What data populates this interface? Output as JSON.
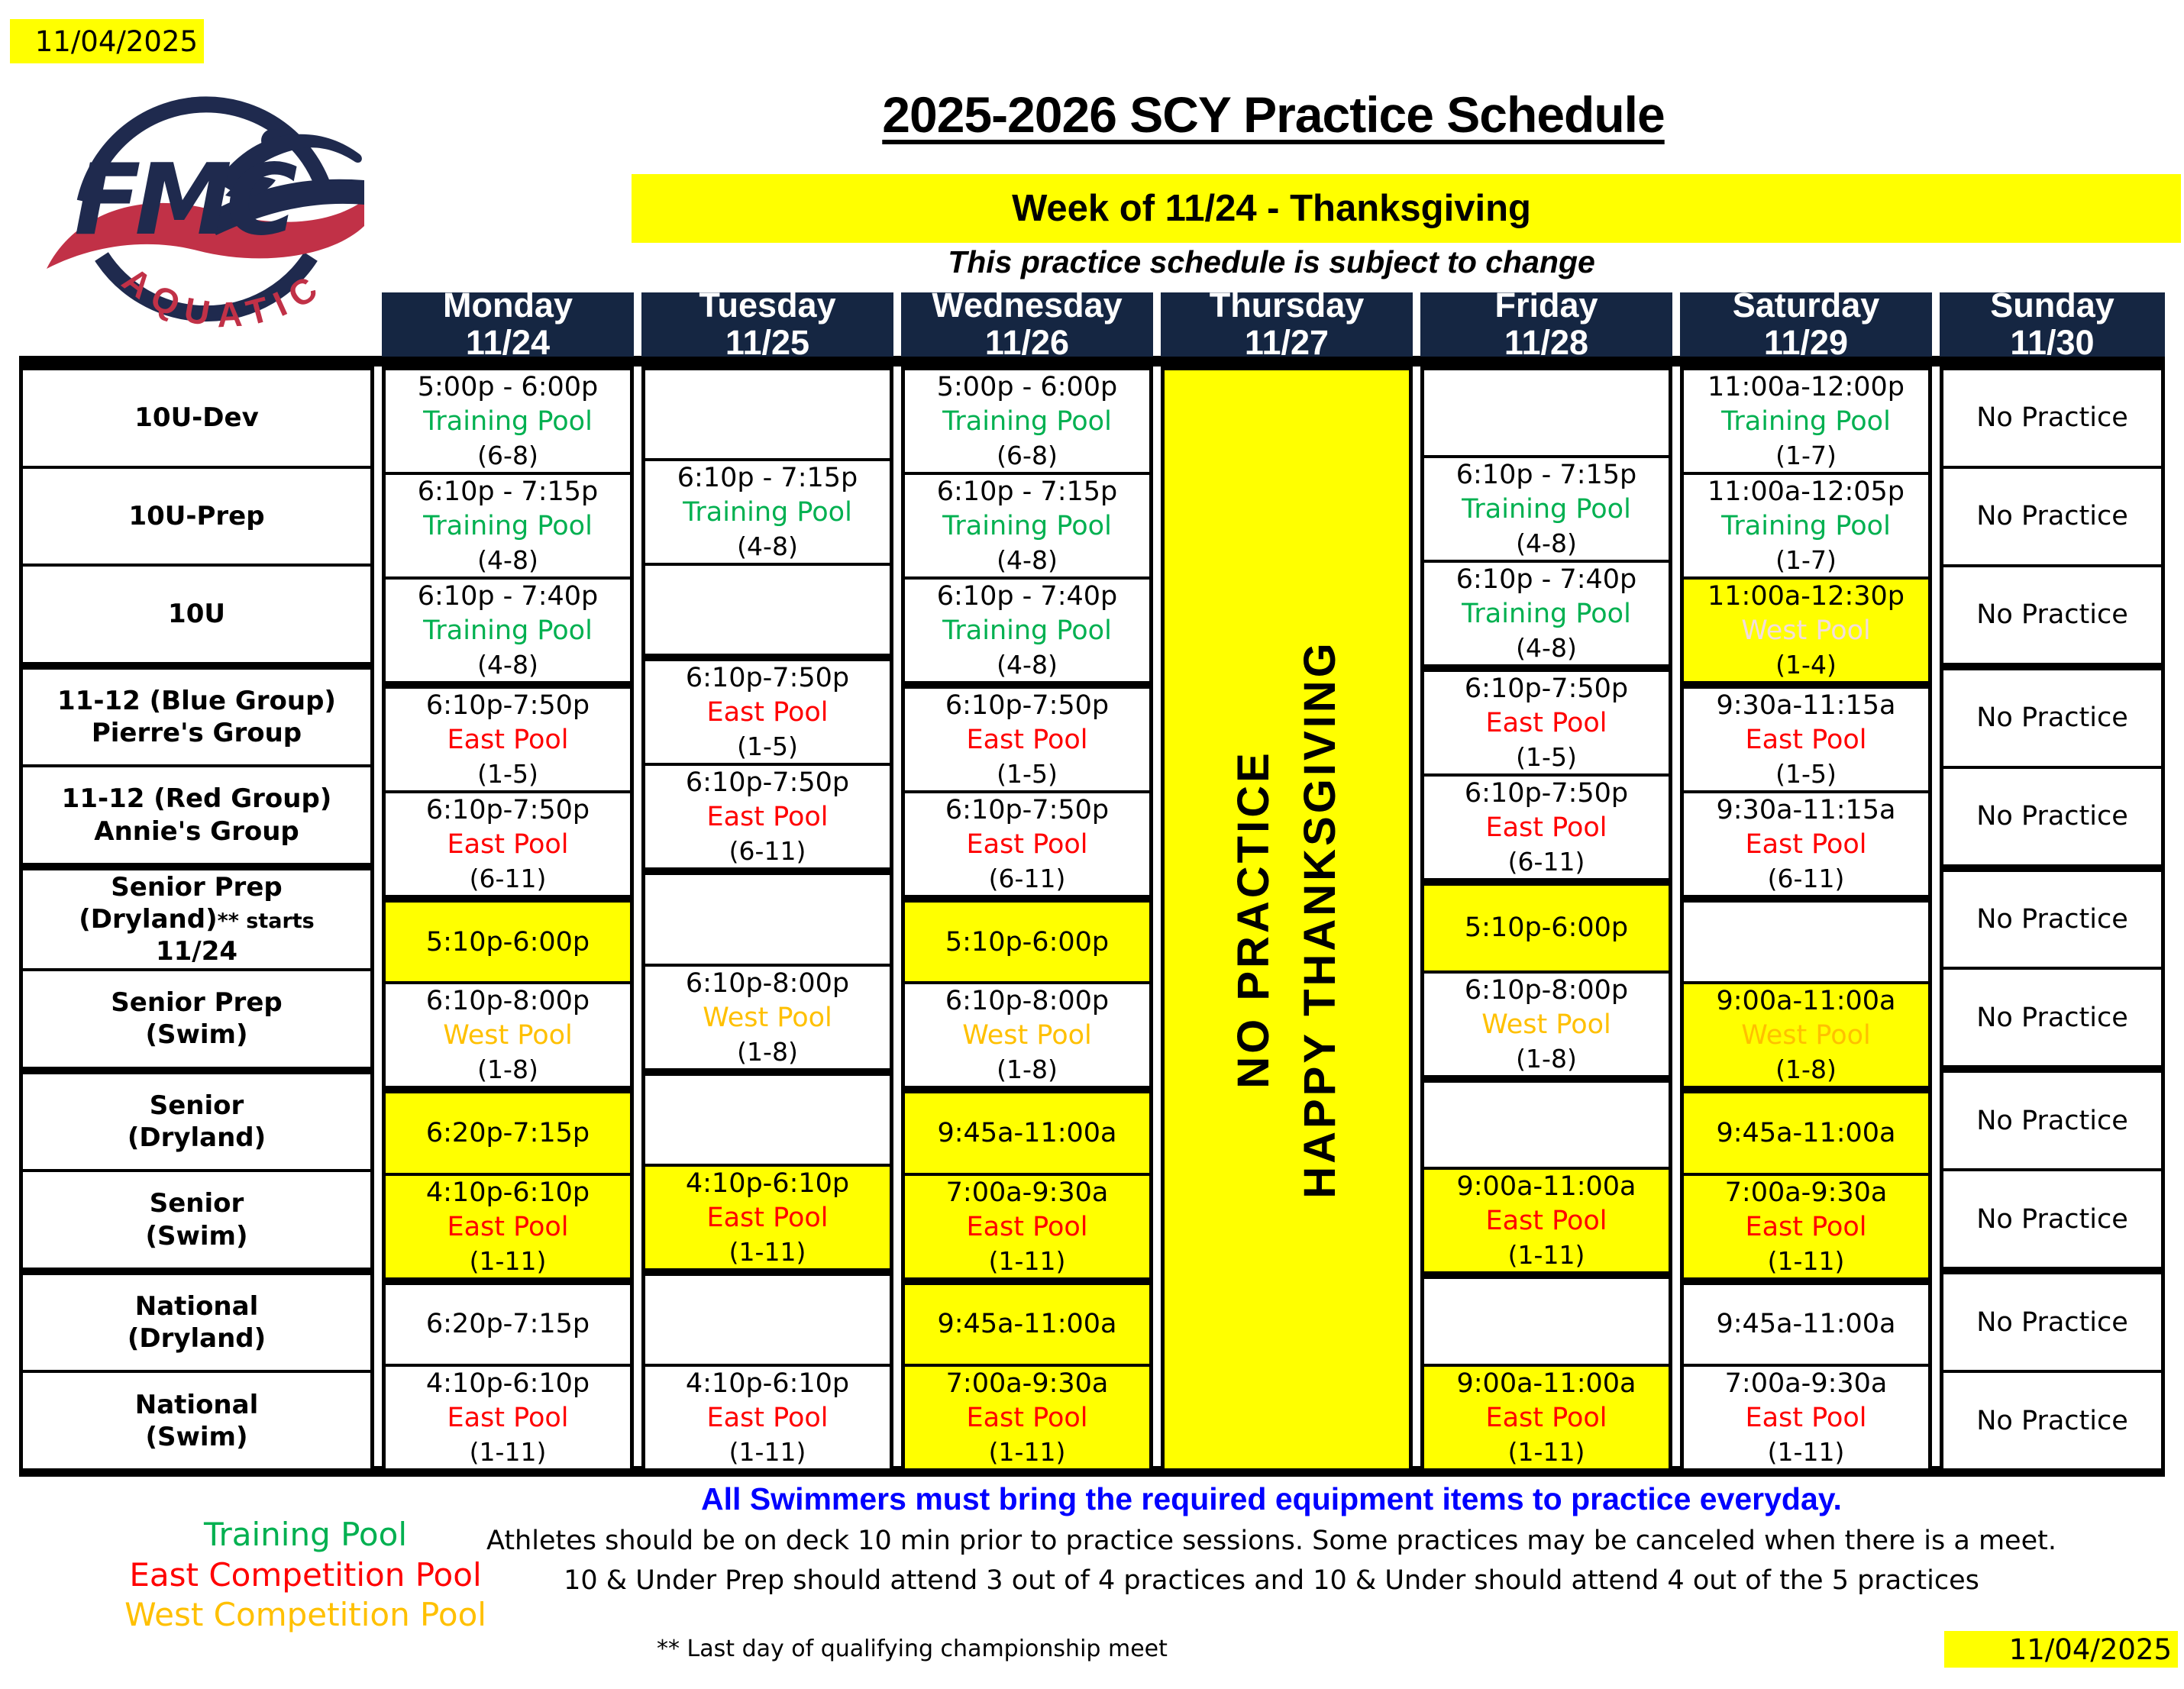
{
  "meta": {
    "revision_date": "11/04/2025"
  },
  "header": {
    "title": "2025-2026 SCY Practice Schedule",
    "week_banner": "Week of 11/24 - Thanksgiving",
    "subtitle": "This practice schedule is subject to change",
    "logo": {
      "org": "FMC",
      "sub": "AQUATIC"
    }
  },
  "table": {
    "days": [
      {
        "name": "Monday",
        "date": "11/24"
      },
      {
        "name": "Tuesday",
        "date": "11/25"
      },
      {
        "name": "Wednesday",
        "date": "11/26"
      },
      {
        "name": "Thursday",
        "date": "11/27"
      },
      {
        "name": "Friday",
        "date": "11/28"
      },
      {
        "name": "Saturday",
        "date": "11/29"
      },
      {
        "name": "Sunday",
        "date": "11/30"
      }
    ],
    "groups": [
      {
        "label_lines": [
          "10U-Dev"
        ]
      },
      {
        "label_lines": [
          "10U-Prep"
        ]
      },
      {
        "label_lines": [
          "10U"
        ]
      },
      {
        "label_lines": [
          "11-12 (Blue Group)",
          "Pierre's Group"
        ]
      },
      {
        "label_lines": [
          "11-12 (Red Group)",
          "Annie's Group"
        ]
      },
      {
        "label_lines": [
          "Senior Prep",
          {
            "main": "(Dryland)",
            "small": "** starts"
          },
          "11/24"
        ]
      },
      {
        "label_lines": [
          "Senior Prep",
          "(Swim)"
        ]
      },
      {
        "label_lines": [
          "Senior",
          "(Dryland)"
        ]
      },
      {
        "label_lines": [
          "Senior",
          "(Swim)"
        ]
      },
      {
        "label_lines": [
          "National",
          "(Dryland)"
        ]
      },
      {
        "label_lines": [
          "National",
          "(Swim)"
        ]
      }
    ],
    "thursday_banner": [
      "NO PRACTICE",
      "HAPPY THANKSGIVING"
    ],
    "columns": {
      "monday": [
        {
          "time": "5:00p - 6:00p",
          "pool": "Training Pool",
          "group": "(6-8)"
        },
        {
          "time": "6:10p - 7:15p",
          "pool": "Training Pool",
          "group": "(4-8)"
        },
        {
          "time": "6:10p - 7:40p",
          "pool": "Training Pool",
          "group": "(4-8)"
        },
        {
          "time": "6:10p-7:50p",
          "pool": "East Pool",
          "group": "(1-5)"
        },
        {
          "time": "6:10p-7:50p",
          "pool": "East Pool",
          "group": "(6-11)"
        },
        {
          "time": "5:10p-6:00p",
          "bg": "yellow"
        },
        {
          "time": "6:10p-8:00p",
          "pool": "West Pool",
          "group": "(1-8)"
        },
        {
          "time": "6:20p-7:15p",
          "bg": "yellow"
        },
        {
          "time": "4:10p-6:10p",
          "pool": "East Pool",
          "group": "(1-11)",
          "bg": "yellow"
        },
        {
          "time": "6:20p-7:15p"
        },
        {
          "time": "4:10p-6:10p",
          "pool": "East Pool",
          "group": "(1-11)"
        }
      ],
      "tuesday": [
        {},
        {
          "time": "6:10p - 7:15p",
          "pool": "Training Pool",
          "group": "(4-8)"
        },
        {},
        {
          "time": "6:10p-7:50p",
          "pool": "East Pool",
          "group": "(1-5)"
        },
        {
          "time": "6:10p-7:50p",
          "pool": "East Pool",
          "group": "(6-11)"
        },
        {},
        {
          "time": "6:10p-8:00p",
          "pool": "West Pool",
          "group": "(1-8)"
        },
        {},
        {
          "time": "4:10p-6:10p",
          "pool": "East Pool",
          "group": "(1-11)",
          "bg": "yellow"
        },
        {},
        {
          "time": "4:10p-6:10p",
          "pool": "East Pool",
          "group": "(1-11)"
        }
      ],
      "wednesday": [
        {
          "time": "5:00p - 6:00p",
          "pool": "Training Pool",
          "group": "(6-8)"
        },
        {
          "time": "6:10p - 7:15p",
          "pool": "Training Pool",
          "group": "(4-8)"
        },
        {
          "time": "6:10p - 7:40p",
          "pool": "Training Pool",
          "group": "(4-8)"
        },
        {
          "time": "6:10p-7:50p",
          "pool": "East Pool",
          "group": "(1-5)"
        },
        {
          "time": "6:10p-7:50p",
          "pool": "East Pool",
          "group": "(6-11)"
        },
        {
          "time": "5:10p-6:00p",
          "bg": "yellow"
        },
        {
          "time": "6:10p-8:00p",
          "pool": "West Pool",
          "group": "(1-8)"
        },
        {
          "time": "9:45a-11:00a",
          "bg": "yellow"
        },
        {
          "time": "7:00a-9:30a",
          "pool": "East Pool",
          "group": "(1-11)",
          "bg": "yellow"
        },
        {
          "time": "9:45a-11:00a",
          "bg": "yellow"
        },
        {
          "time": "7:00a-9:30a",
          "pool": "East Pool",
          "group": "(1-11)",
          "bg": "yellow"
        }
      ],
      "friday": [
        {},
        {
          "time": "6:10p - 7:15p",
          "pool": "Training Pool",
          "group": "(4-8)"
        },
        {
          "time": "6:10p - 7:40p",
          "pool": "Training Pool",
          "group": "(4-8)"
        },
        {
          "time": "6:10p-7:50p",
          "pool": "East Pool",
          "group": "(1-5)"
        },
        {
          "time": "6:10p-7:50p",
          "pool": "East Pool",
          "group": "(6-11)"
        },
        {
          "time": "5:10p-6:00p",
          "bg": "yellow"
        },
        {
          "time": "6:10p-8:00p",
          "pool": "West Pool",
          "group": "(1-8)"
        },
        {},
        {
          "time": "9:00a-11:00a",
          "pool": "East Pool",
          "group": "(1-11)",
          "bg": "yellow"
        },
        {},
        {
          "time": "9:00a-11:00a",
          "pool": "East Pool",
          "group": "(1-11)",
          "bg": "yellow"
        }
      ],
      "saturday": [
        {
          "time": "11:00a-12:00p",
          "pool": "Training Pool",
          "group": "(1-7)"
        },
        {
          "time": "11:00a-12:05p",
          "pool": "Training Pool",
          "group": "(1-7)"
        },
        {
          "time": "11:00a-12:30p",
          "pool": "West Pool",
          "group": "(1-4)",
          "bg": "yellow",
          "pool_style": "pale"
        },
        {
          "time": "9:30a-11:15a",
          "pool": "East Pool",
          "group": "(1-5)"
        },
        {
          "time": "9:30a-11:15a",
          "pool": "East Pool",
          "group": "(6-11)"
        },
        {},
        {
          "time": "9:00a-11:00a",
          "pool": "West Pool",
          "group": "(1-8)",
          "bg": "yellow"
        },
        {
          "time": "9:45a-11:00a",
          "bg": "yellow"
        },
        {
          "time": "7:00a-9:30a",
          "pool": "East Pool",
          "group": "(1-11)",
          "bg": "yellow"
        },
        {
          "time": "9:45a-11:00a"
        },
        {
          "time": "7:00a-9:30a",
          "pool": "East Pool",
          "group": "(1-11)"
        }
      ],
      "sunday": [
        {
          "note": "No Practice"
        },
        {
          "note": "No Practice"
        },
        {
          "note": "No Practice"
        },
        {
          "note": "No Practice"
        },
        {
          "note": "No Practice"
        },
        {
          "note": "No Practice"
        },
        {
          "note": "No Practice"
        },
        {
          "note": "No Practice"
        },
        {
          "note": "No Practice"
        },
        {
          "note": "No Practice"
        },
        {
          "note": "No Practice"
        }
      ]
    }
  },
  "legend": [
    {
      "label": "Training Pool",
      "color": "#00B050"
    },
    {
      "label": "East Competition Pool",
      "color": "#FF0000"
    },
    {
      "label": "West Competition Pool",
      "color": "#FFC000"
    }
  ],
  "notes": {
    "equipment": "All Swimmers must bring the required equipment items to practice everyday.",
    "deck": "Athletes should be on deck 10 min prior to practice sessions.  Some practices may be canceled when there is a meet.",
    "attendance": "10 & Under Prep should attend 3 out of 4 practices and 10 & Under should attend 4 out of the 5 practices",
    "asterisk": "** Last day of qualifying championship meet"
  },
  "colors": {
    "accent_yellow": "#FFFF00",
    "header_navy": "#152642",
    "note_blue": "#0000FF",
    "logo_navy": "#1F2A4E",
    "logo_red": "#C13147",
    "west_pale": "#F2DCDB",
    "pool_colors": {
      "Training Pool": "#00B050",
      "East Pool": "#FF0000",
      "West Pool": "#FFC000"
    }
  }
}
